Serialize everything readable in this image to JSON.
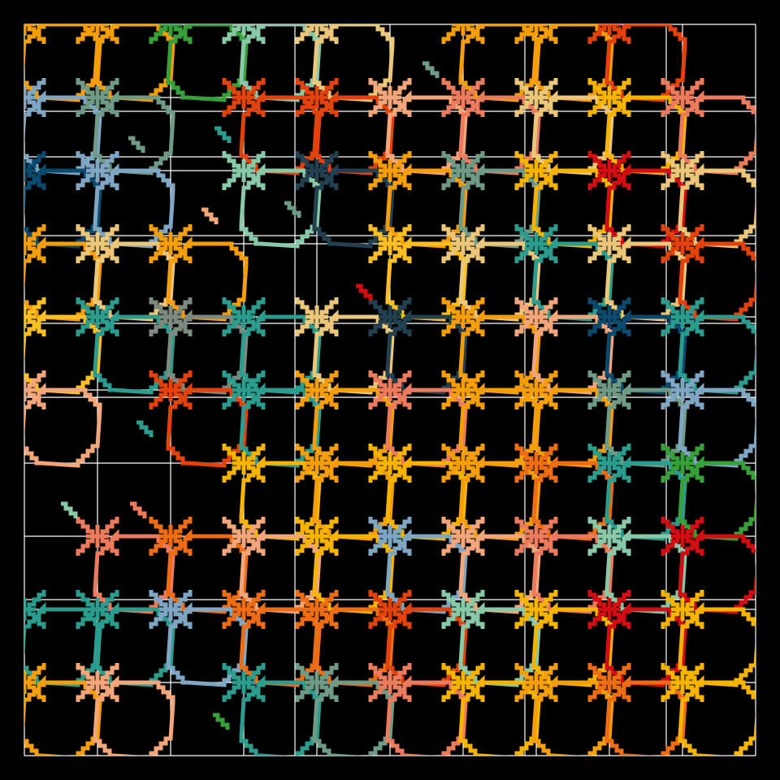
{
  "artwork": {
    "kind": "generative lattice of stepped octagonal ring motifs",
    "background": "#000000",
    "grid_line_color": "#ffffff",
    "palette": {
      "orange": "#f59e0b",
      "gold": "#f6b400",
      "amber": "#fbbf24",
      "dark_orange": "#ee6c14",
      "vermilion": "#e3420c",
      "red": "#d40d12",
      "salmon": "#ec7a5c",
      "peach": "#f2a679",
      "sand": "#ecc77a",
      "teal": "#2a9d8f",
      "mint": "#88c9a8",
      "sage": "#6f9a86",
      "sky": "#7fa7c4",
      "navy": "#0b4a6e",
      "slate": "#22404f",
      "gray": "#7d8a80",
      "green": "#38a03a"
    },
    "motifs": [
      {
        "col": 0,
        "row": 0,
        "color": "orange"
      },
      {
        "col": 1,
        "row": 0,
        "color": "orange"
      },
      {
        "col": 2,
        "row": 0,
        "color": "green"
      },
      {
        "col": 3,
        "row": 0,
        "color": "mint"
      },
      {
        "col": 4,
        "row": 0,
        "color": "sand"
      },
      {
        "col": 6,
        "row": 0,
        "color": "orange"
      },
      {
        "col": 7,
        "row": 0,
        "color": "orange"
      },
      {
        "col": 8,
        "row": 0,
        "color": "vermilion"
      },
      {
        "col": 0,
        "row": 1,
        "color": "sky"
      },
      {
        "col": 1,
        "row": 1,
        "color": "sage"
      },
      {
        "col": 3,
        "row": 1,
        "color": "vermilion"
      },
      {
        "col": 4,
        "row": 1,
        "color": "vermilion"
      },
      {
        "col": 5,
        "row": 1,
        "color": "peach"
      },
      {
        "col": 6,
        "row": 1,
        "color": "salmon"
      },
      {
        "col": 7,
        "row": 1,
        "color": "sand"
      },
      {
        "col": 8,
        "row": 1,
        "color": "gold"
      },
      {
        "col": 9,
        "row": 1,
        "color": "salmon"
      },
      {
        "col": 0,
        "row": 2,
        "color": "navy"
      },
      {
        "col": 1,
        "row": 2,
        "color": "sky"
      },
      {
        "col": 3,
        "row": 2,
        "color": "mint"
      },
      {
        "col": 4,
        "row": 2,
        "color": "slate"
      },
      {
        "col": 5,
        "row": 2,
        "color": "orange"
      },
      {
        "col": 6,
        "row": 2,
        "color": "sage"
      },
      {
        "col": 7,
        "row": 2,
        "color": "gold"
      },
      {
        "col": 8,
        "row": 2,
        "color": "red"
      },
      {
        "col": 9,
        "row": 2,
        "color": "sand"
      },
      {
        "col": 0,
        "row": 3,
        "color": "orange"
      },
      {
        "col": 1,
        "row": 3,
        "color": "sand"
      },
      {
        "col": 2,
        "row": 3,
        "color": "orange"
      },
      {
        "col": 5,
        "row": 3,
        "color": "amber"
      },
      {
        "col": 6,
        "row": 3,
        "color": "sand"
      },
      {
        "col": 7,
        "row": 3,
        "color": "teal"
      },
      {
        "col": 8,
        "row": 3,
        "color": "sand"
      },
      {
        "col": 9,
        "row": 3,
        "color": "vermilion"
      },
      {
        "col": 0,
        "row": 4,
        "color": "amber"
      },
      {
        "col": 1,
        "row": 4,
        "color": "teal"
      },
      {
        "col": 2,
        "row": 4,
        "color": "gray"
      },
      {
        "col": 3,
        "row": 4,
        "color": "teal"
      },
      {
        "col": 4,
        "row": 4,
        "color": "sand"
      },
      {
        "col": 5,
        "row": 4,
        "color": "slate"
      },
      {
        "col": 6,
        "row": 4,
        "color": "orange"
      },
      {
        "col": 7,
        "row": 4,
        "color": "peach"
      },
      {
        "col": 8,
        "row": 4,
        "color": "navy"
      },
      {
        "col": 9,
        "row": 4,
        "color": "teal"
      },
      {
        "col": 0,
        "row": 5,
        "color": "peach"
      },
      {
        "col": 2,
        "row": 5,
        "color": "vermilion"
      },
      {
        "col": 3,
        "row": 5,
        "color": "teal"
      },
      {
        "col": 4,
        "row": 5,
        "color": "orange"
      },
      {
        "col": 5,
        "row": 5,
        "color": "salmon"
      },
      {
        "col": 6,
        "row": 5,
        "color": "orange"
      },
      {
        "col": 7,
        "row": 5,
        "color": "orange"
      },
      {
        "col": 8,
        "row": 5,
        "color": "sage"
      },
      {
        "col": 9,
        "row": 5,
        "color": "sky"
      },
      {
        "col": 3,
        "row": 6,
        "color": "gold"
      },
      {
        "col": 4,
        "row": 6,
        "color": "orange"
      },
      {
        "col": 5,
        "row": 6,
        "color": "gold"
      },
      {
        "col": 6,
        "row": 6,
        "color": "orange"
      },
      {
        "col": 7,
        "row": 6,
        "color": "dark_orange"
      },
      {
        "col": 8,
        "row": 6,
        "color": "teal"
      },
      {
        "col": 9,
        "row": 6,
        "color": "green"
      },
      {
        "col": 1,
        "row": 7,
        "color": "salmon"
      },
      {
        "col": 2,
        "row": 7,
        "color": "dark_orange"
      },
      {
        "col": 3,
        "row": 7,
        "color": "peach"
      },
      {
        "col": 4,
        "row": 7,
        "color": "gold"
      },
      {
        "col": 5,
        "row": 7,
        "color": "sky"
      },
      {
        "col": 6,
        "row": 7,
        "color": "peach"
      },
      {
        "col": 7,
        "row": 7,
        "color": "salmon"
      },
      {
        "col": 8,
        "row": 7,
        "color": "mint"
      },
      {
        "col": 9,
        "row": 7,
        "color": "red"
      },
      {
        "col": 0,
        "row": 8,
        "color": "teal"
      },
      {
        "col": 1,
        "row": 8,
        "color": "teal"
      },
      {
        "col": 2,
        "row": 8,
        "color": "sky"
      },
      {
        "col": 3,
        "row": 8,
        "color": "dark_orange"
      },
      {
        "col": 4,
        "row": 8,
        "color": "dark_orange"
      },
      {
        "col": 5,
        "row": 8,
        "color": "vermilion"
      },
      {
        "col": 6,
        "row": 8,
        "color": "mint"
      },
      {
        "col": 7,
        "row": 8,
        "color": "gold"
      },
      {
        "col": 8,
        "row": 8,
        "color": "red"
      },
      {
        "col": 9,
        "row": 8,
        "color": "gold"
      },
      {
        "col": 0,
        "row": 9,
        "color": "orange"
      },
      {
        "col": 1,
        "row": 9,
        "color": "peach"
      },
      {
        "col": 3,
        "row": 9,
        "color": "teal"
      },
      {
        "col": 4,
        "row": 9,
        "color": "sage"
      },
      {
        "col": 5,
        "row": 9,
        "color": "salmon"
      },
      {
        "col": 6,
        "row": 9,
        "color": "gold"
      },
      {
        "col": 7,
        "row": 9,
        "color": "orange"
      },
      {
        "col": 8,
        "row": 9,
        "color": "dark_orange"
      },
      {
        "col": 9,
        "row": 9,
        "color": "gold"
      }
    ],
    "stray_fragments": [
      {
        "color": "red"
      },
      {
        "color": "teal"
      },
      {
        "color": "green"
      },
      {
        "color": "sage"
      },
      {
        "color": "sage"
      },
      {
        "color": "peach"
      },
      {
        "color": "teal"
      },
      {
        "color": "sage"
      },
      {
        "color": "mint"
      },
      {
        "color": "salmon"
      }
    ]
  }
}
